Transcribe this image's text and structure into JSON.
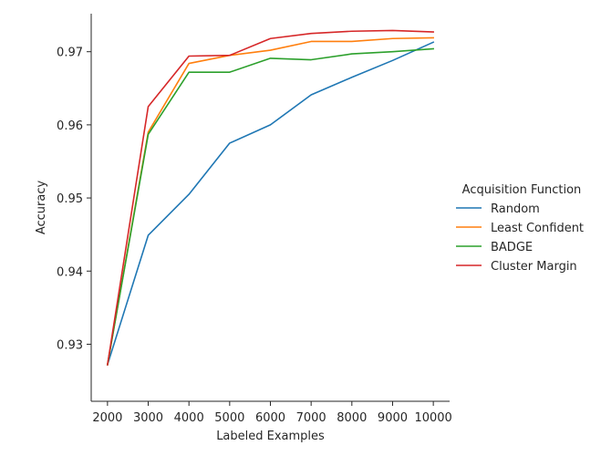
{
  "chart_data": {
    "type": "line",
    "title": "",
    "xlabel": "Labeled Examples",
    "ylabel": "Accuracy",
    "x": [
      2000,
      3000,
      4000,
      5000,
      6000,
      7000,
      8000,
      9000,
      10000
    ],
    "xticks": [
      "2000",
      "3000",
      "4000",
      "5000",
      "6000",
      "7000",
      "8000",
      "9000",
      "10000"
    ],
    "yticks": [
      "0.93",
      "0.94",
      "0.95",
      "0.96",
      "0.97"
    ],
    "xlim": [
      1600,
      10400
    ],
    "ylim": [
      0.9222,
      0.9752
    ],
    "grid": false,
    "legend": {
      "title": "Acquisition Function",
      "position": "right"
    },
    "series": [
      {
        "name": "Random",
        "color": "#1f77b4",
        "values": [
          0.9272,
          0.9449,
          0.9505,
          0.9575,
          0.96,
          0.9641,
          0.9665,
          0.9688,
          0.9713
        ]
      },
      {
        "name": "Least Confident",
        "color": "#ff7f0e",
        "values": [
          0.9272,
          0.959,
          0.9684,
          0.9695,
          0.9702,
          0.9714,
          0.9714,
          0.9718,
          0.9719
        ]
      },
      {
        "name": "BADGE",
        "color": "#2ca02c",
        "values": [
          0.9272,
          0.9587,
          0.9672,
          0.9672,
          0.9691,
          0.9689,
          0.9697,
          0.97,
          0.9704
        ]
      },
      {
        "name": "Cluster Margin",
        "color": "#d62728",
        "values": [
          0.9272,
          0.9625,
          0.9694,
          0.9695,
          0.9718,
          0.9725,
          0.9728,
          0.9729,
          0.9727
        ]
      }
    ]
  }
}
